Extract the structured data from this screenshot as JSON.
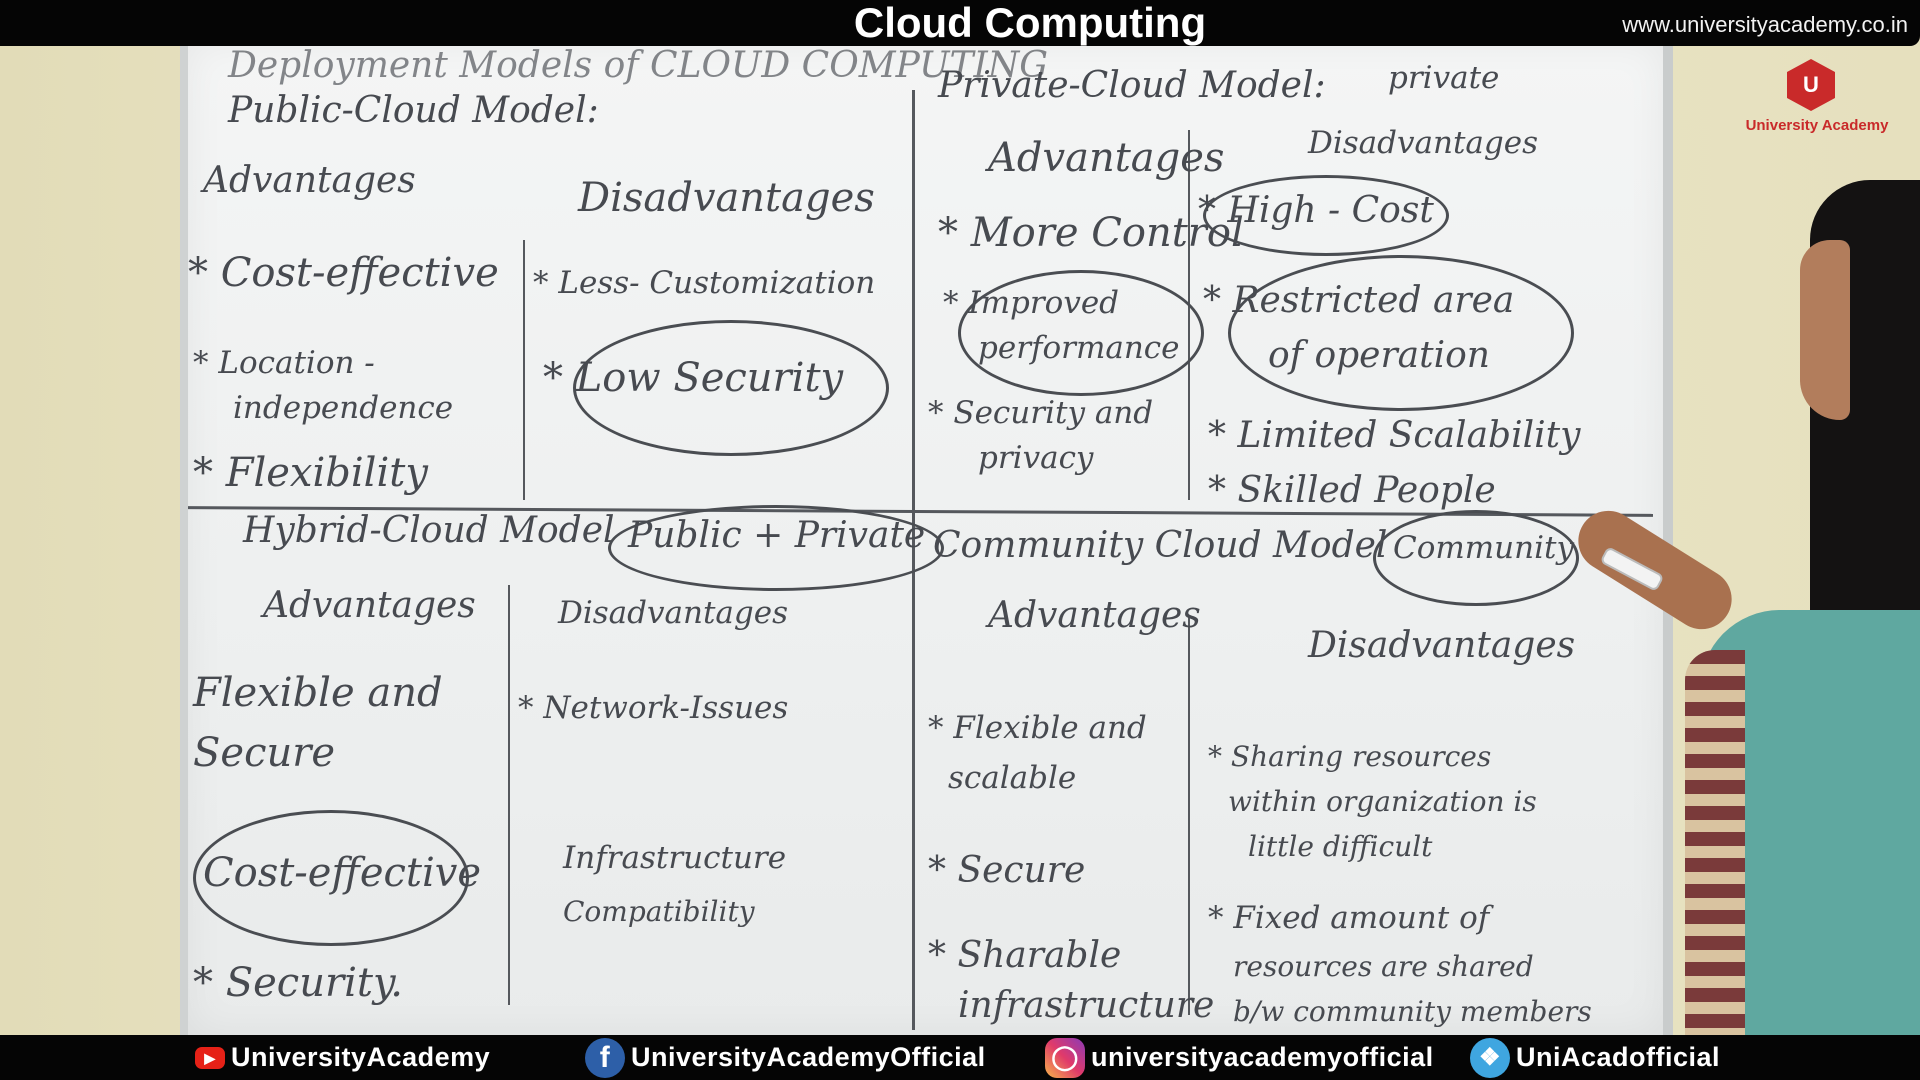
{
  "header": {
    "title": "Cloud Computing",
    "url": "www.universityacademy.co.in"
  },
  "logo": {
    "brand": "University Academy",
    "badge_letter": "U"
  },
  "board": {
    "main_heading": "Deployment Models of CLOUD COMPUTING",
    "public": {
      "title": "Public-Cloud Model:",
      "advantages_label": "Advantages",
      "disadvantages_label": "Disadvantages",
      "advantages": [
        "* Cost-effective",
        "* Location -",
        "independence",
        "* Flexibility"
      ],
      "disadvantages": [
        "* Less- Customization",
        "* Low Security"
      ]
    },
    "private": {
      "title": "Private-Cloud Model:",
      "tag": "private",
      "advantages_label": "Advantages",
      "disadvantages_label": "Disadvantages",
      "advantages": [
        "* More Control",
        "* Improved",
        "performance",
        "* Security and",
        "privacy"
      ],
      "disadvantages": [
        "* High - Cost",
        "* Restricted area",
        "of operation",
        "* Limited Scalability",
        "* Skilled People"
      ]
    },
    "hybrid": {
      "title": "Hybrid-Cloud Model",
      "tag": "Public + Private",
      "advantages_label": "Advantages",
      "disadvantages_label": "Disadvantages",
      "advantages": [
        "Flexible and",
        "Secure",
        "Cost-effective",
        "* Security."
      ],
      "disadvantages": [
        "* Network-Issues",
        "Infrastructure",
        "Compatibility"
      ]
    },
    "community": {
      "title": "Community Cloud Model",
      "tag": "Community",
      "advantages_label": "Advantages",
      "disadvantages_label": "Disadvantages",
      "advantages": [
        "* Flexible and",
        "scalable",
        "* Secure",
        "* Sharable",
        "infrastructure"
      ],
      "disadvantages": [
        "* Sharing resources",
        "within organization is",
        "little difficult",
        "* Fixed amount of",
        "resources are shared",
        "b/w community members"
      ]
    }
  },
  "footer": {
    "youtube": "UniversityAcademy",
    "facebook": "UniversityAcademyOfficial",
    "instagram": "universityacademyofficial",
    "twitter": "UniAcadofficial"
  },
  "colors": {
    "ink": "#474a50",
    "bar": "#050505",
    "brand_red": "#c92a2a"
  }
}
